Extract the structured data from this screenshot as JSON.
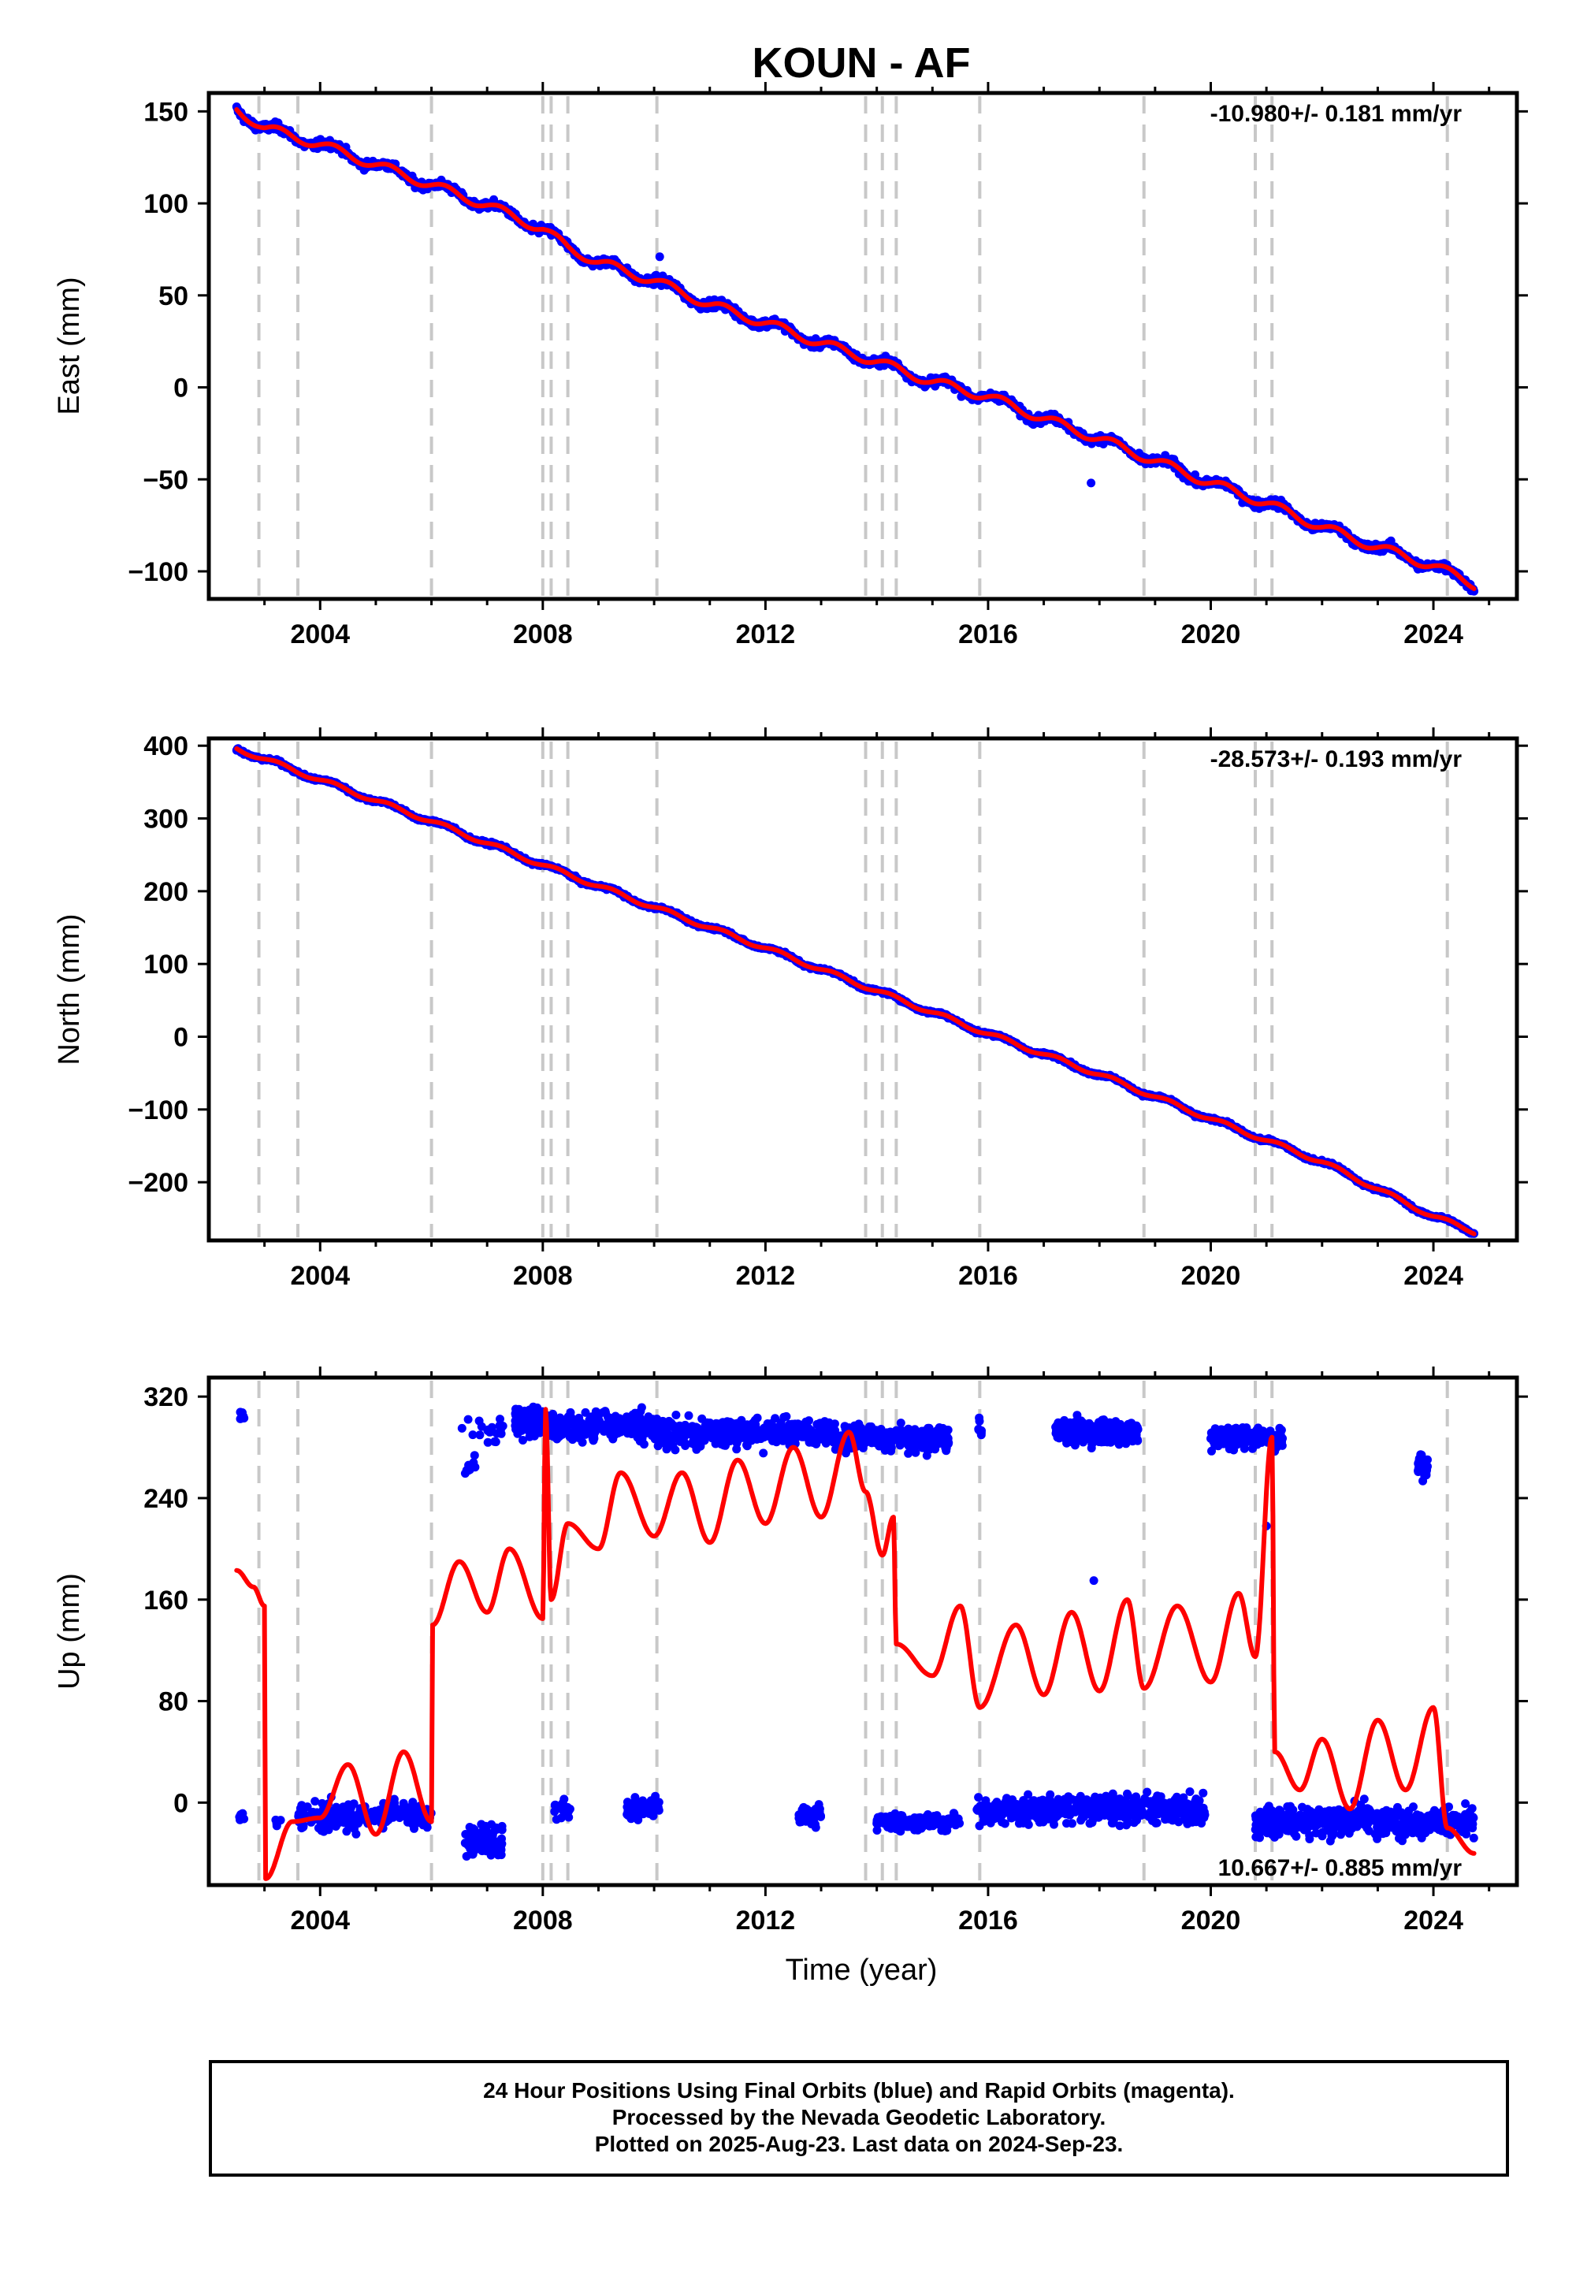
{
  "title": "KOUN - AF",
  "xlabel": "Time (year)",
  "footer": {
    "line1": "24 Hour Positions Using Final Orbits (blue) and Rapid Orbits (magenta).",
    "line2": "Processed by the Nevada Geodetic Laboratory.",
    "line3": "Plotted on 2025-Aug-23. Last data on 2024-Sep-23."
  },
  "colors": {
    "points": "#0000ff",
    "model": "#ff0000",
    "steps": "#c8c8c8",
    "frame": "#000000"
  },
  "chart_data": [
    {
      "type": "scatter",
      "ylabel": "East (mm)",
      "rate_label": "-10.980+/- 0.181 mm/yr",
      "xlim": [
        2002.0,
        2025.5
      ],
      "ylim": [
        -115,
        160
      ],
      "xticks": [
        "2004",
        "2008",
        "2012",
        "2016",
        "2020",
        "2024"
      ],
      "xtick_values": [
        2004,
        2008,
        2012,
        2016,
        2020,
        2024
      ],
      "yticks": [
        "150",
        "100",
        "50",
        "0",
        "−50",
        "−100"
      ],
      "ytick_values": [
        150,
        100,
        50,
        0,
        -50,
        -100
      ],
      "step_epochs": [
        2002.9,
        2003.6,
        2006.0,
        2008.0,
        2008.15,
        2008.45,
        2010.05,
        2013.8,
        2014.1,
        2014.35,
        2015.85,
        2018.8,
        2020.8,
        2021.1,
        2024.25
      ],
      "data_range": [
        2002.5,
        2024.73
      ],
      "trend": {
        "t0": 2002.5,
        "y0": 151,
        "rate": -10.98,
        "seasonal_amp": 2.5
      },
      "series": [
        {
          "values": [
            [
              2002.5,
              151
            ],
            [
              2003.0,
              141
            ],
            [
              2004.0,
              132
            ],
            [
              2005.0,
              121
            ],
            [
              2006.0,
              110
            ],
            [
              2007.0,
              99
            ],
            [
              2008.0,
              86
            ],
            [
              2008.45,
              76
            ],
            [
              2009.0,
              68
            ],
            [
              2010.0,
              58
            ],
            [
              2011.0,
              45
            ],
            [
              2012.0,
              35
            ],
            [
              2013.0,
              24
            ],
            [
              2014.0,
              14
            ],
            [
              2015.0,
              3
            ],
            [
              2016.0,
              -5
            ],
            [
              2017.0,
              -17
            ],
            [
              2018.0,
              -28
            ],
            [
              2019.0,
              -40
            ],
            [
              2020.0,
              -52
            ],
            [
              2021.0,
              -63
            ],
            [
              2022.0,
              -76
            ],
            [
              2023.0,
              -87
            ],
            [
              2024.0,
              -97
            ],
            [
              2024.73,
              -107
            ]
          ]
        }
      ],
      "outliers": [
        [
          2017.85,
          -52
        ],
        [
          2010.1,
          71
        ]
      ]
    },
    {
      "type": "scatter",
      "ylabel": "North (mm)",
      "rate_label": "-28.573+/- 0.193 mm/yr",
      "xlim": [
        2002.0,
        2025.5
      ],
      "ylim": [
        -280,
        410
      ],
      "xticks": [
        "2004",
        "2008",
        "2012",
        "2016",
        "2020",
        "2024"
      ],
      "xtick_values": [
        2004,
        2008,
        2012,
        2016,
        2020,
        2024
      ],
      "yticks": [
        "400",
        "300",
        "200",
        "100",
        "0",
        "−100",
        "−200"
      ],
      "ytick_values": [
        400,
        300,
        200,
        100,
        0,
        -100,
        -200
      ],
      "step_epochs": [
        2002.9,
        2003.6,
        2006.0,
        2008.0,
        2008.15,
        2008.45,
        2010.05,
        2013.8,
        2014.1,
        2014.35,
        2015.85,
        2018.8,
        2020.8,
        2021.1,
        2024.25
      ],
      "data_range": [
        2002.5,
        2024.73
      ],
      "trend": {
        "t0": 2002.5,
        "y0": 396,
        "rate": -28.573,
        "seasonal_amp": 3
      },
      "series": [
        {
          "values": [
            [
              2002.5,
              396
            ],
            [
              2004.0,
              353
            ],
            [
              2006.0,
              296
            ],
            [
              2008.0,
              236
            ],
            [
              2010.0,
              178
            ],
            [
              2012.0,
              122
            ],
            [
              2014.0,
              63
            ],
            [
              2016.0,
              4
            ],
            [
              2018.0,
              -52
            ],
            [
              2020.0,
              -113
            ],
            [
              2022.0,
              -172
            ],
            [
              2024.0,
              -247
            ],
            [
              2024.73,
              -268
            ]
          ]
        }
      ],
      "outliers": [
        [
          2017.9,
          -50
        ]
      ]
    },
    {
      "type": "scatter",
      "ylabel": "Up (mm)",
      "rate_label": "10.667+/- 0.885 mm/yr",
      "xlim": [
        2002.0,
        2025.5
      ],
      "ylim": [
        -65,
        335
      ],
      "xticks": [
        "2004",
        "2008",
        "2012",
        "2016",
        "2020",
        "2024"
      ],
      "xtick_values": [
        2004,
        2008,
        2012,
        2016,
        2020,
        2024
      ],
      "yticks": [
        "320",
        "240",
        "160",
        "80",
        "0"
      ],
      "ytick_values": [
        320,
        240,
        160,
        80,
        0
      ],
      "step_epochs": [
        2002.9,
        2003.6,
        2006.0,
        2008.0,
        2008.15,
        2008.45,
        2010.05,
        2013.8,
        2014.1,
        2014.35,
        2015.85,
        2018.8,
        2020.8,
        2021.1,
        2024.25
      ],
      "point_clusters": [
        {
          "range": [
            2002.55,
            2002.65
          ],
          "center": 305,
          "spread": 3,
          "n": 8
        },
        {
          "range": [
            2002.55,
            2002.65
          ],
          "center": -10,
          "spread": 4,
          "n": 8
        },
        {
          "range": [
            2003.2,
            2003.3
          ],
          "center": -15,
          "spread": 6,
          "n": 6
        },
        {
          "range": [
            2003.6,
            2006.0
          ],
          "center": -10,
          "spread": 12,
          "n": 220
        },
        {
          "range": [
            2006.5,
            2007.3
          ],
          "center": 295,
          "spread": 12,
          "n": 20
        },
        {
          "range": [
            2006.6,
            2007.3
          ],
          "center": -30,
          "spread": 12,
          "n": 90
        },
        {
          "range": [
            2006.6,
            2006.8
          ],
          "center": 265,
          "spread": 8,
          "n": 10
        },
        {
          "range": [
            2007.5,
            2008.0
          ],
          "center": 300,
          "spread": 12,
          "n": 90
        },
        {
          "range": [
            2008.0,
            2010.05
          ],
          "center": 297,
          "spread": 12,
          "n": 260
        },
        {
          "range": [
            2008.2,
            2008.5
          ],
          "center": -5,
          "spread": 8,
          "n": 30
        },
        {
          "range": [
            2009.5,
            2010.1
          ],
          "center": -5,
          "spread": 9,
          "n": 50
        },
        {
          "range": [
            2010.0,
            2013.2
          ],
          "center": 292,
          "spread": 11,
          "n": 400
        },
        {
          "range": [
            2012.6,
            2013.0
          ],
          "center": -10,
          "spread": 9,
          "n": 45
        },
        {
          "range": [
            2013.2,
            2015.3
          ],
          "center": 287,
          "spread": 11,
          "n": 260
        },
        {
          "range": [
            2014.0,
            2014.9
          ],
          "center": -15,
          "spread": 7,
          "n": 70
        },
        {
          "range": [
            2014.9,
            2015.5
          ],
          "center": -15,
          "spread": 7,
          "n": 45
        },
        {
          "range": [
            2015.8,
            2015.9
          ],
          "center": 295,
          "spread": 8,
          "n": 8
        },
        {
          "range": [
            2015.8,
            2019.9
          ],
          "center": -5,
          "spread": 11,
          "n": 520
        },
        {
          "range": [
            2017.2,
            2018.7
          ],
          "center": 292,
          "spread": 10,
          "n": 240
        },
        {
          "range": [
            2020.0,
            2021.3
          ],
          "center": 288,
          "spread": 8,
          "n": 220
        },
        {
          "range": [
            2020.8,
            2024.73
          ],
          "center": -15,
          "spread": 12,
          "n": 520
        },
        {
          "range": [
            2023.7,
            2023.9
          ],
          "center": 265,
          "spread": 10,
          "n": 40
        }
      ],
      "outliers": [
        [
          2017.9,
          175
        ],
        [
          2021.0,
          218
        ]
      ],
      "model_curve": [
        [
          2002.5,
          183
        ],
        [
          2002.8,
          170
        ],
        [
          2003.0,
          155
        ],
        [
          2003.02,
          -60
        ],
        [
          2003.5,
          -15
        ],
        [
          2004.0,
          -12
        ],
        [
          2004.5,
          30
        ],
        [
          2005.0,
          -25
        ],
        [
          2005.5,
          40
        ],
        [
          2006.0,
          -15
        ],
        [
          2006.02,
          140
        ],
        [
          2006.5,
          190
        ],
        [
          2007.0,
          150
        ],
        [
          2007.4,
          200
        ],
        [
          2008.0,
          145
        ],
        [
          2008.05,
          310
        ],
        [
          2008.15,
          160
        ],
        [
          2008.45,
          220
        ],
        [
          2009.0,
          200
        ],
        [
          2009.4,
          260
        ],
        [
          2010.0,
          210
        ],
        [
          2010.5,
          260
        ],
        [
          2011.0,
          205
        ],
        [
          2011.5,
          270
        ],
        [
          2012.0,
          220
        ],
        [
          2012.5,
          280
        ],
        [
          2013.0,
          225
        ],
        [
          2013.5,
          292
        ],
        [
          2013.8,
          245
        ],
        [
          2014.1,
          195
        ],
        [
          2014.3,
          225
        ],
        [
          2014.35,
          125
        ],
        [
          2015.0,
          100
        ],
        [
          2015.5,
          155
        ],
        [
          2015.85,
          75
        ],
        [
          2016.5,
          140
        ],
        [
          2017.0,
          85
        ],
        [
          2017.5,
          150
        ],
        [
          2018.0,
          88
        ],
        [
          2018.5,
          160
        ],
        [
          2018.8,
          90
        ],
        [
          2019.4,
          155
        ],
        [
          2020.0,
          95
        ],
        [
          2020.5,
          165
        ],
        [
          2020.8,
          115
        ],
        [
          2021.1,
          288
        ],
        [
          2021.15,
          40
        ],
        [
          2021.6,
          10
        ],
        [
          2022.0,
          50
        ],
        [
          2022.5,
          -5
        ],
        [
          2023.0,
          65
        ],
        [
          2023.5,
          10
        ],
        [
          2024.0,
          75
        ],
        [
          2024.25,
          -20
        ],
        [
          2024.73,
          -40
        ]
      ]
    }
  ]
}
